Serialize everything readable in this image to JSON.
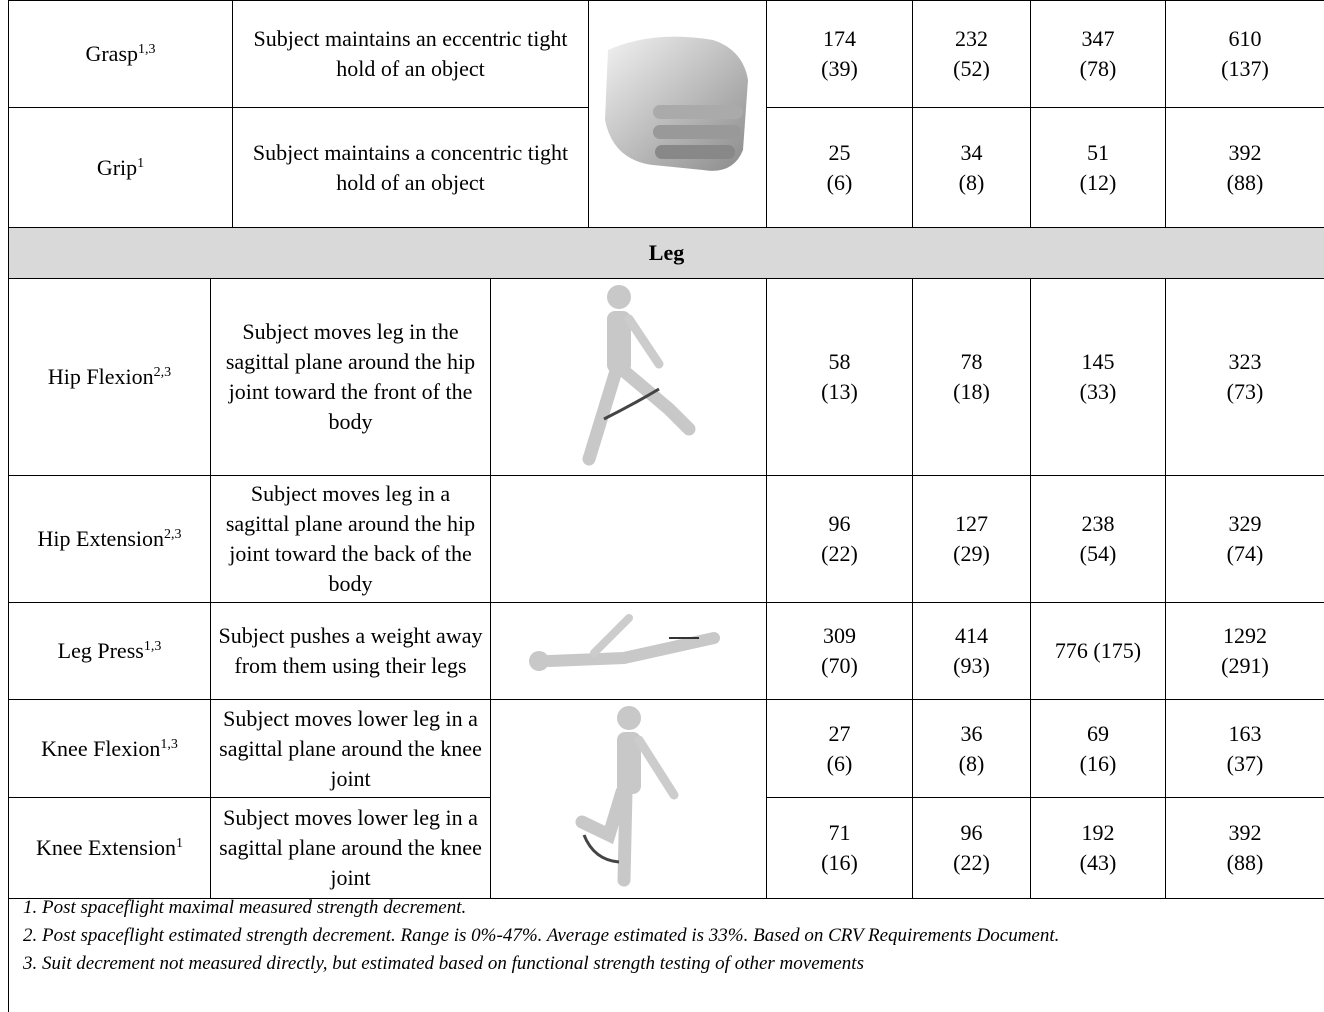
{
  "arm_rows": [
    {
      "name": "Grasp",
      "sup": "1,3",
      "description": "Subject maintains an eccentric tight hold of an object",
      "values": [
        "174\n(39)",
        "232\n(52)",
        "347\n(78)",
        "610\n(137)"
      ]
    },
    {
      "name": "Grip",
      "sup": "1",
      "description": "Subject maintains a concentric tight hold of an object",
      "values": [
        "25\n(6)",
        "34\n(8)",
        "51\n(12)",
        "392\n(88)"
      ]
    }
  ],
  "leg_header": "Leg",
  "leg_rows": [
    {
      "name": "Hip Flexion",
      "sup": "2,3",
      "description": "Subject moves leg in the sagittal plane around the hip joint toward the front of the body",
      "values": [
        "58\n(13)",
        "78\n(18)",
        "145\n(33)",
        "323\n(73)"
      ]
    },
    {
      "name": "Hip Extension",
      "sup": "2,3",
      "description": "Subject moves leg in a sagittal plane around the hip joint toward the back of the body",
      "values": [
        "96\n(22)",
        "127\n(29)",
        "238\n(54)",
        "329\n(74)"
      ]
    },
    {
      "name": "Leg Press",
      "sup": "1,3",
      "description": "Subject pushes a weight away from them using their legs",
      "values": [
        "309\n(70)",
        "414\n(93)",
        "776 (175)",
        "1292\n(291)"
      ]
    },
    {
      "name": "Knee Flexion",
      "sup": "1,3",
      "description": "Subject moves lower leg in a sagittal plane around the knee joint",
      "values": [
        "27\n(6)",
        "36\n(8)",
        "69\n(16)",
        "163\n(37)"
      ]
    },
    {
      "name": "Knee Extension",
      "sup": "1",
      "description": "Subject moves lower leg in a sagittal plane around the knee joint",
      "values": [
        "71\n(16)",
        "96\n(22)",
        "192\n(43)",
        "392\n(88)"
      ]
    }
  ],
  "footnotes": [
    "1. Post spaceflight maximal measured strength decrement.",
    "2. Post spaceflight estimated strength decrement.  Range is 0%-47%.   Average estimated is 33%.  Based on CRV Requirements Document.",
    "3. Suit decrement not measured directly, but estimated based on functional strength testing of other movements"
  ]
}
